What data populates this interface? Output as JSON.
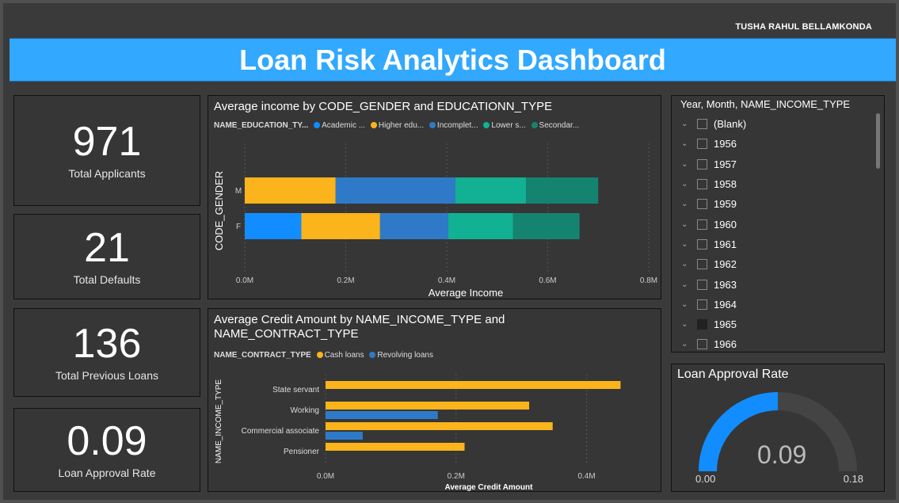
{
  "author": "TUSHA RAHUL BELLAMKONDA",
  "title": "Loan Risk Analytics Dashboard",
  "kpis": [
    {
      "value": "971",
      "label": "Total Applicants"
    },
    {
      "value": "21",
      "label": "Total Defaults"
    },
    {
      "value": "136",
      "label": "Total Previous Loans"
    },
    {
      "value": "0.09",
      "label": "Loan Approval Rate"
    }
  ],
  "income_chart": {
    "title": "Average income by CODE_GENDER and EDUCATIONN_TYPE",
    "legend_title": "NAME_EDUCATION_TY...",
    "legend_items": [
      "Academic ...",
      "Higher edu...",
      "Incomplet...",
      "Lower s...",
      "Secondar..."
    ]
  },
  "credit_chart": {
    "title_line1": "Average Credit Amount by NAME_INCOME_TYPE and",
    "title_line2": "NAME_CONTRACT_TYPE",
    "legend_title": "NAME_CONTRACT_TYPE",
    "legend_items": [
      "Cash loans",
      "Revolving loans"
    ]
  },
  "slicer": {
    "header": "Year, Month, NAME_INCOME_TYPE",
    "items": [
      {
        "label": "(Blank)",
        "checked": false
      },
      {
        "label": "1956",
        "checked": false
      },
      {
        "label": "1957",
        "checked": false
      },
      {
        "label": "1958",
        "checked": false
      },
      {
        "label": "1959",
        "checked": false
      },
      {
        "label": "1960",
        "checked": false
      },
      {
        "label": "1961",
        "checked": false
      },
      {
        "label": "1962",
        "checked": false
      },
      {
        "label": "1963",
        "checked": false
      },
      {
        "label": "1964",
        "checked": false
      },
      {
        "label": "1965",
        "checked": true
      },
      {
        "label": "1966",
        "checked": false
      }
    ]
  },
  "gauge": {
    "title": "Loan Approval Rate",
    "value_label": "0.09",
    "min_label": "0.00",
    "max_label": "0.18"
  },
  "colors": {
    "accent": "#32a8ff",
    "academic": "#118dff",
    "higher": "#fbb41b",
    "incomplete": "#2f7ac8",
    "lower": "#12b193",
    "secondary": "#148471",
    "cash": "#fbb41b",
    "revolving": "#2f7ac8",
    "gauge_fill": "#118dff",
    "gauge_track": "#444444"
  },
  "chart_data": [
    {
      "type": "bar",
      "orientation": "horizontal",
      "stacked": true,
      "title": "Average income by CODE_GENDER and EDUCATIONN_TYPE",
      "xlabel": "Average Income",
      "ylabel": "CODE_GENDER",
      "categories": [
        "M",
        "F"
      ],
      "x_ticks": [
        "0.0M",
        "0.2M",
        "0.4M",
        "0.6M",
        "0.8M"
      ],
      "xlim": [
        0,
        800000
      ],
      "series": [
        {
          "name": "Academic ...",
          "values": [
            0,
            112000
          ]
        },
        {
          "name": "Higher edu...",
          "values": [
            180000,
            156000
          ]
        },
        {
          "name": "Incomplet...",
          "values": [
            237000,
            135000
          ]
        },
        {
          "name": "Lower s...",
          "values": [
            140000,
            128000
          ]
        },
        {
          "name": "Secondar...",
          "values": [
            143000,
            132000
          ]
        }
      ]
    },
    {
      "type": "bar",
      "orientation": "horizontal",
      "title": "Average Credit Amount by NAME_INCOME_TYPE and NAME_CONTRACT_TYPE",
      "xlabel": "Average Credit Amount",
      "ylabel": "NAME_INCOME_TYPE",
      "categories": [
        "State servant",
        "Working",
        "Commercial associate",
        "Pensioner"
      ],
      "x_ticks": [
        "0.0M",
        "0.2M",
        "0.4M"
      ],
      "xlim": [
        0,
        500000
      ],
      "series": [
        {
          "name": "Cash loans",
          "values": [
            452000,
            312000,
            348000,
            213000
          ]
        },
        {
          "name": "Revolving loans",
          "values": [
            0,
            172000,
            57000,
            0
          ]
        }
      ]
    },
    {
      "type": "gauge",
      "title": "Loan Approval Rate",
      "value": 0.09,
      "min": 0.0,
      "max": 0.18
    }
  ]
}
